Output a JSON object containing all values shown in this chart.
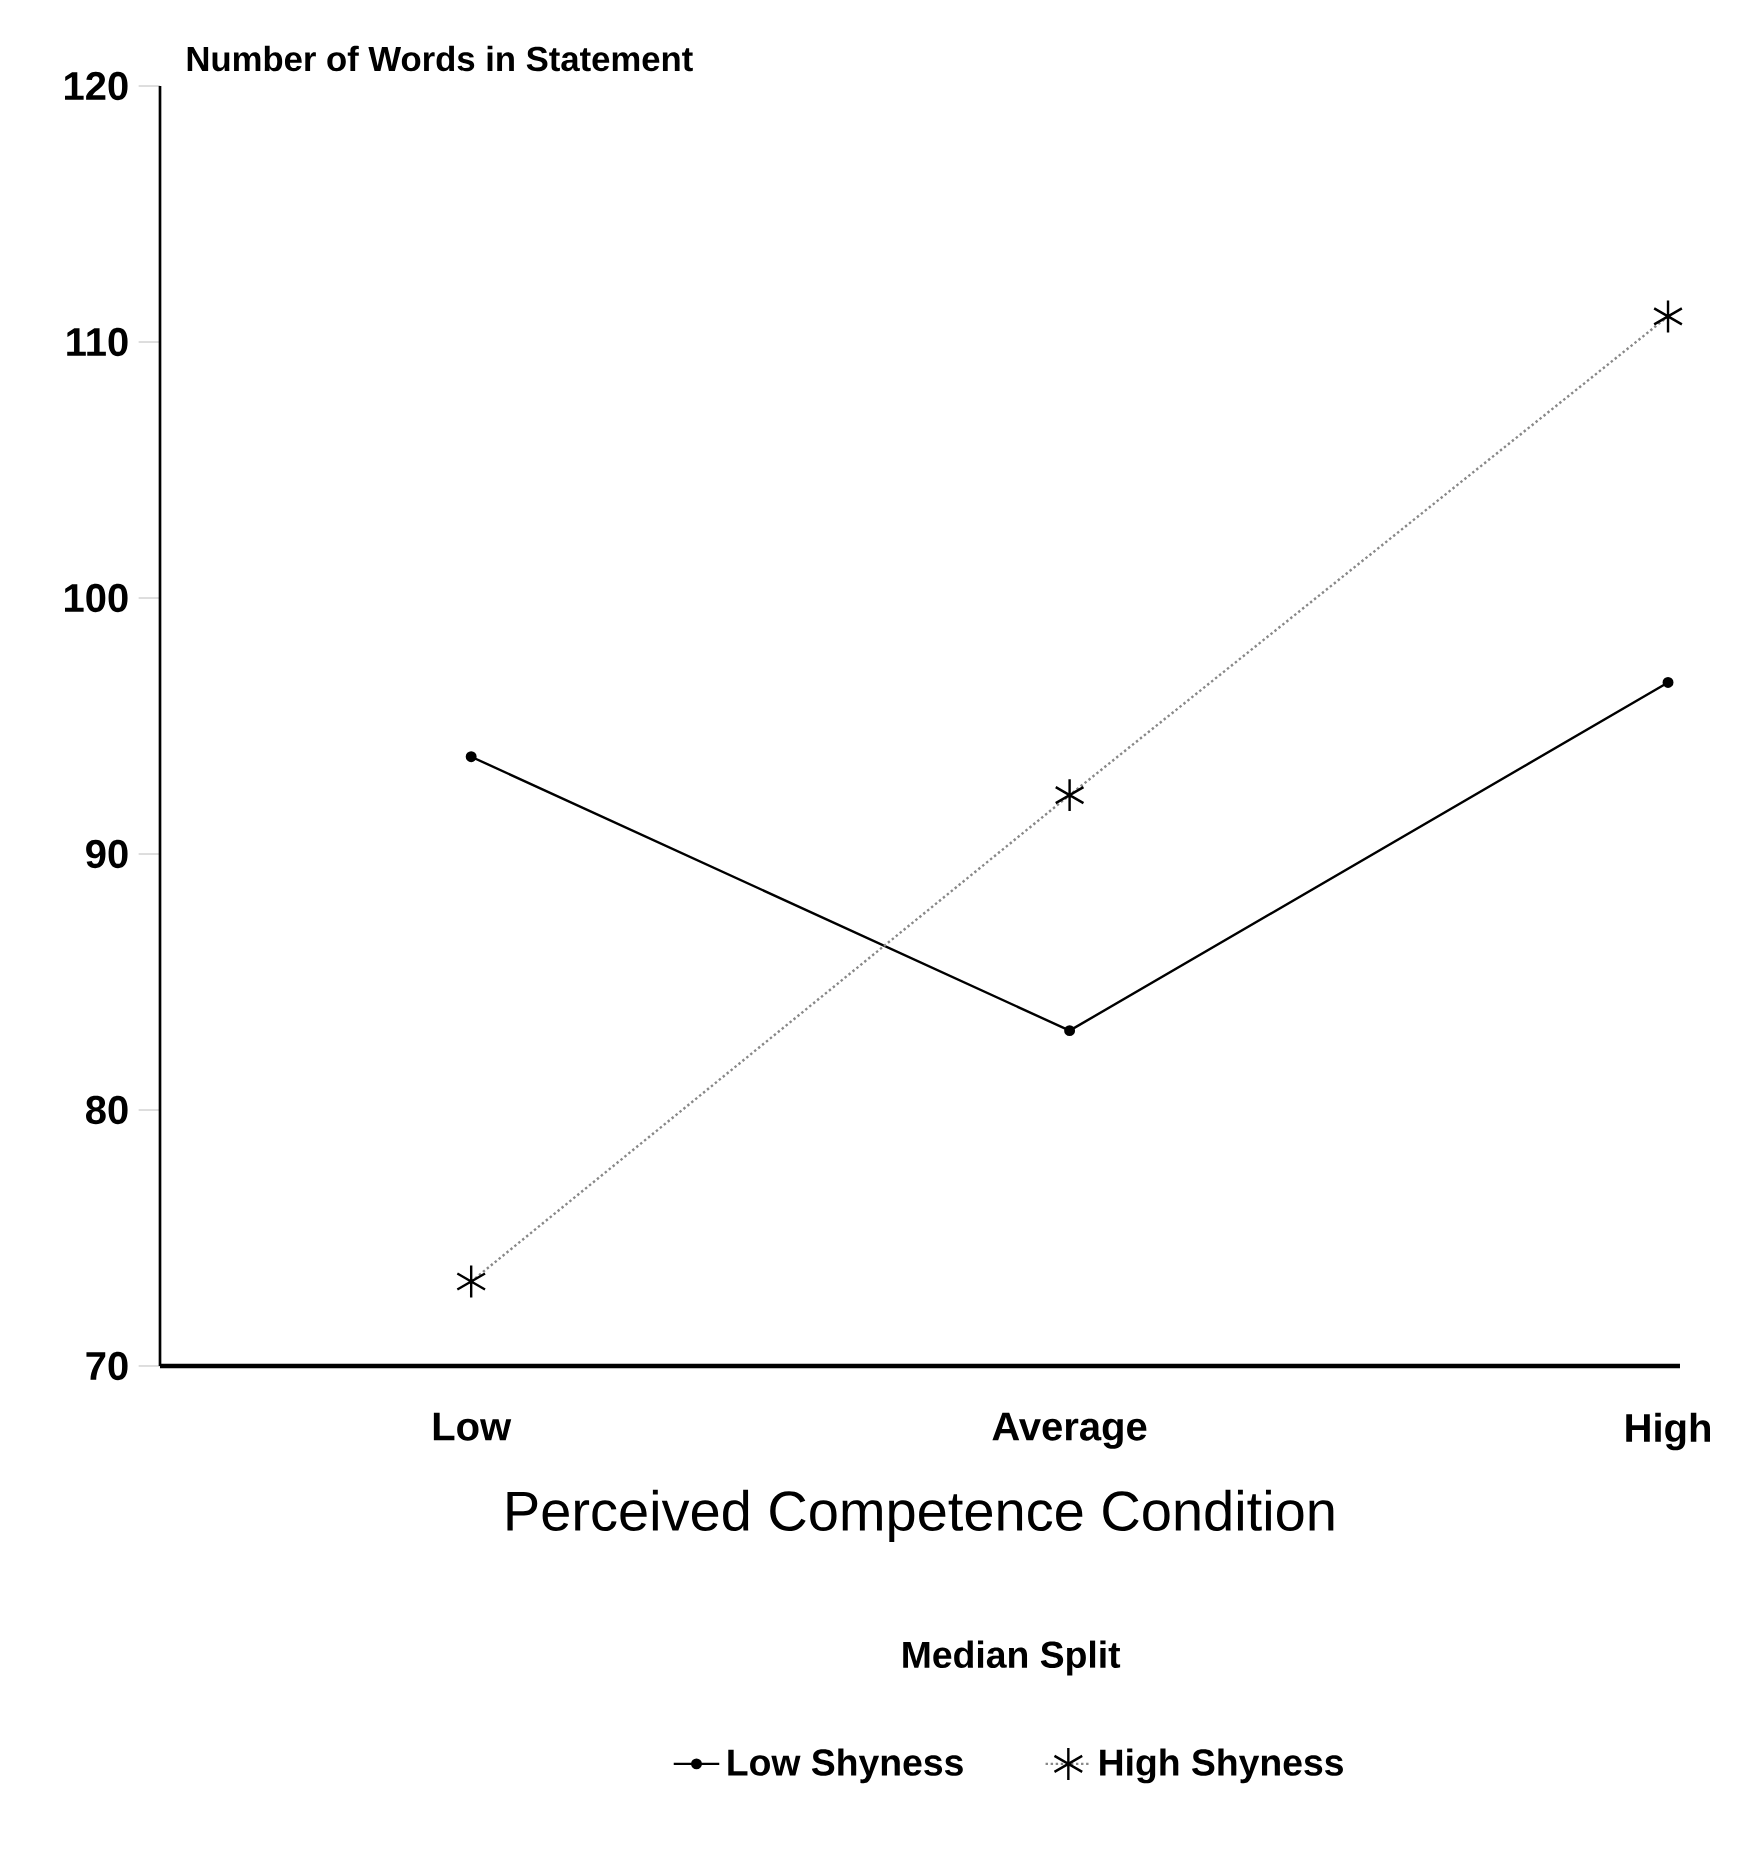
{
  "chart_data": {
    "type": "line",
    "ylabel": "Number of Words in Statement",
    "xlabel": "Perceived Competence Condition",
    "categories": [
      "Low",
      "Average",
      "High"
    ],
    "ylim": [
      70,
      120
    ],
    "yticks": [
      70,
      80,
      90,
      100,
      110,
      120
    ],
    "legend": "bottom",
    "legend_title": "Median Split",
    "grid": false,
    "series": [
      {
        "name": "Low Shyness",
        "color": "#000000",
        "marker": "circle",
        "line_style": "solid",
        "values": [
          93.8,
          83.1,
          96.7
        ]
      },
      {
        "name": "High Shyness",
        "color": "#888888",
        "marker": "cross",
        "line_style": "dotted",
        "values": [
          73.3,
          92.3,
          111.0
        ]
      }
    ]
  }
}
